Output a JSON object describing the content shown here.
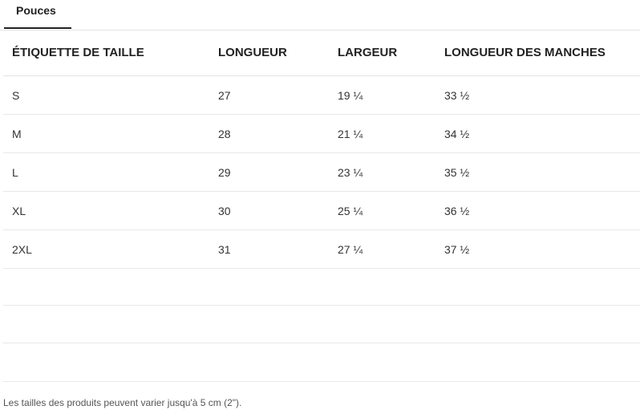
{
  "tabs": [
    {
      "label": "Pouces",
      "active": true
    }
  ],
  "table": {
    "headers": [
      "ÉTIQUETTE DE TAILLE",
      "LONGUEUR",
      "LARGEUR",
      "LONGUEUR DES MANCHES"
    ],
    "rows": [
      [
        "S",
        "27",
        "19 ¼",
        "33 ½"
      ],
      [
        "M",
        "28",
        "21 ¼",
        "34 ½"
      ],
      [
        "L",
        "29",
        "23 ¼",
        "35 ½"
      ],
      [
        "XL",
        "30",
        "25 ¼",
        "36 ½"
      ],
      [
        "2XL",
        "31",
        "27 ¼",
        "37 ½"
      ]
    ]
  },
  "footnote": "Les tailles des produits peuvent varier jusqu'à 5 cm (2\")."
}
